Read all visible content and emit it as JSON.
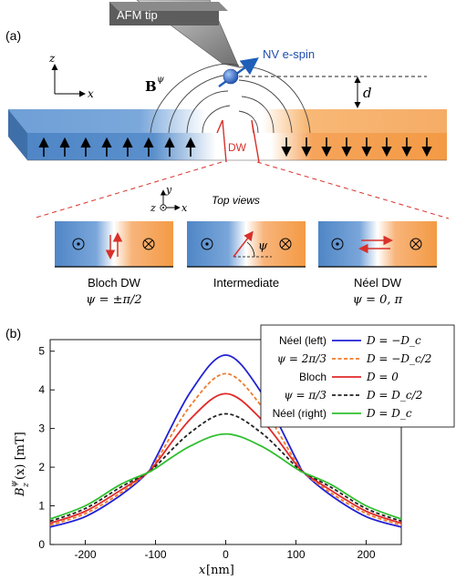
{
  "panel_a": {
    "label": "(a)",
    "afm_tip": "AFM tip",
    "nv_spin": "NV e-spin",
    "b_field": "B",
    "b_super": "ψ",
    "distance": "d",
    "axis_z": "z",
    "axis_x": "x",
    "axis_y": "y",
    "dw_label": "DW",
    "top_views": "Top views",
    "views": [
      {
        "name": "Bloch DW",
        "formula": "ψ = ±π/2"
      },
      {
        "name": "Intermediate",
        "formula": "",
        "angle": "ψ"
      },
      {
        "name": "Néel DW",
        "formula": "ψ = 0, π"
      }
    ],
    "colors": {
      "blue": "#4f86c6",
      "orange": "#f39a44",
      "red": "#d9302a"
    }
  },
  "panel_b": {
    "label": "(b)",
    "ylabel_main": "B",
    "ylabel_rest": "(x) [mT]",
    "ylabel_sup": "ψ",
    "ylabel_sub": "z",
    "xlabel_main": "x",
    "xlabel_rest": " [nm]",
    "legend": [
      {
        "left": "Néel (left)",
        "right": "D = −D_c",
        "color": "#2121d4",
        "dash": false
      },
      {
        "left": "ψ = 2π/3",
        "right": "D = −D_c/2",
        "color": "#f07a2a",
        "dash": true
      },
      {
        "left": "Bloch",
        "right": "D = 0",
        "color": "#e02a2a",
        "dash": false
      },
      {
        "left": "ψ = π/3",
        "right": "D = D_c/2",
        "color": "#222222",
        "dash": true
      },
      {
        "left": "Néel (right)",
        "right": "D = D_c",
        "color": "#2fbf2f",
        "dash": false
      }
    ]
  },
  "chart_data": {
    "type": "line",
    "xlabel": "x [nm]",
    "ylabel": "B_z^ψ(x) [mT]",
    "xlim": [
      -250,
      250
    ],
    "ylim": [
      0,
      5.3
    ],
    "xticks": [
      -200,
      -100,
      0,
      100,
      200
    ],
    "yticks": [
      0,
      1,
      2,
      3,
      4,
      5
    ],
    "grid": false,
    "legend_position": "top-right",
    "x": [
      -250,
      -200,
      -150,
      -112,
      -100,
      -50,
      0,
      50,
      100,
      112,
      150,
      200,
      250
    ],
    "series": [
      {
        "name": "Néel (left) D = −D_c",
        "color": "#2121d4",
        "dash": false,
        "values": [
          0.45,
          0.72,
          1.27,
          1.85,
          2.22,
          3.95,
          4.9,
          3.95,
          2.22,
          1.85,
          1.27,
          0.72,
          0.45
        ]
      },
      {
        "name": "ψ = 2π/3 D = −D_c/2",
        "color": "#f07a2a",
        "dash": true,
        "values": [
          0.5,
          0.8,
          1.33,
          1.85,
          2.13,
          3.6,
          4.42,
          3.6,
          2.13,
          1.85,
          1.33,
          0.8,
          0.5
        ]
      },
      {
        "name": "Bloch D = 0",
        "color": "#e02a2a",
        "dash": false,
        "values": [
          0.55,
          0.86,
          1.4,
          1.85,
          2.08,
          3.25,
          3.9,
          3.25,
          2.08,
          1.85,
          1.4,
          0.86,
          0.55
        ]
      },
      {
        "name": "ψ = π/3 D = D_c/2",
        "color": "#222222",
        "dash": true,
        "values": [
          0.6,
          0.93,
          1.48,
          1.85,
          2.02,
          2.9,
          3.38,
          2.9,
          2.02,
          1.85,
          1.48,
          0.93,
          0.6
        ]
      },
      {
        "name": "Néel (right) D = D_c",
        "color": "#2fbf2f",
        "dash": false,
        "values": [
          0.66,
          1.0,
          1.55,
          1.85,
          1.97,
          2.55,
          2.86,
          2.55,
          1.97,
          1.85,
          1.55,
          1.0,
          0.66
        ]
      }
    ]
  }
}
